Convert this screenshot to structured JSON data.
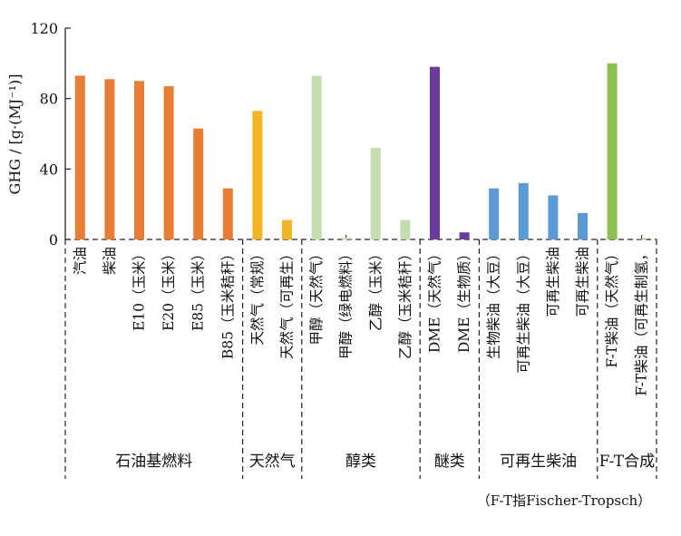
{
  "chart_data": {
    "type": "bar",
    "ylabel": "GHG / [g·(MJ⁻¹)]",
    "ylim": [
      0,
      120
    ],
    "yticks": [
      "0",
      "40",
      "80",
      "120"
    ],
    "grid": false,
    "categories": [
      "汽油",
      "柴油",
      "E10（玉米）",
      "E20（玉米）",
      "E85（玉米）",
      "B85（玉米秸秆）",
      "天然气（常规）",
      "天然气（可再生）",
      "甲醇（天然气）",
      "甲醇（绿电燃料）",
      "乙醇（玉米）",
      "乙醇（玉米秸秆）",
      "DME（天然气）",
      "DME（生物质）",
      "生物柴油（大豆）",
      "可再生柴油（大豆）",
      "可再生柴油",
      "可再生柴油",
      "F-T柴油（天然气）",
      "F-T柴油（可再生制氢，"
    ],
    "values": [
      93,
      91,
      90,
      87,
      63,
      29,
      73,
      11,
      93,
      1,
      52,
      11,
      98,
      4,
      29,
      32,
      25,
      15,
      100,
      0.5
    ],
    "colors": [
      "#E87E35",
      "#E87E35",
      "#E87E35",
      "#E87E35",
      "#E87E35",
      "#E87E35",
      "#F2B526",
      "#F2B526",
      "#C3DDAE",
      "#C3DDAE",
      "#C3DDAE",
      "#C3DDAE",
      "#6A3B9A",
      "#6A3B9A",
      "#5B9BD5",
      "#5B9BD5",
      "#5B9BD5",
      "#5B9BD5",
      "#8CC152",
      "#8CC152"
    ],
    "groups": [
      {
        "label": "石油基燃料",
        "count": 6
      },
      {
        "label": "天然气",
        "count": 2
      },
      {
        "label": "醇类",
        "count": 4
      },
      {
        "label": "醚类",
        "count": 2
      },
      {
        "label": "可再生柴油",
        "count": 4
      },
      {
        "label": "F-T合成",
        "count": 2
      }
    ],
    "note": "（F-T指Fischer-Tropsch）"
  }
}
